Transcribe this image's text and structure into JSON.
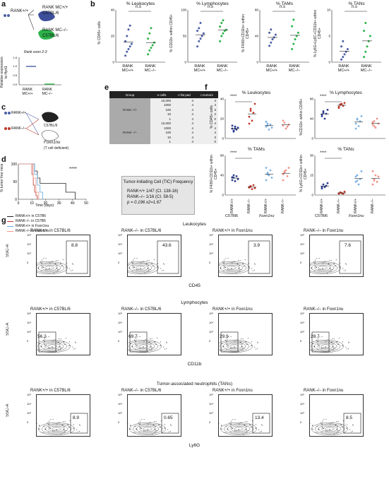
{
  "panels": {
    "a": {
      "label": "a",
      "mouse_left": "RANK+/+",
      "mouse_mc_pp": "RANK MC+/+",
      "mouse_mc_mm": "RANK MC–/–",
      "strain": "C57BL/6",
      "chart_title": "Rank exon 2-3",
      "ylabel": "Relative expression to Hprt1",
      "cats": [
        "RANK MC+/+",
        "RANK MC–/–"
      ]
    },
    "b": {
      "label": "b",
      "titles": [
        "% Leukocytes",
        "% Lymphocytes",
        "% TAMs",
        "% TANs"
      ],
      "ylabels": [
        "% CD45+ cells",
        "% CD11b- within CD45+",
        "% F4/80+CD11b+ within CD45+",
        "% Ly6G+Ly6C+CD11b+ within CD45+"
      ],
      "ns": "n.s",
      "cats": [
        "RANK MC+/+",
        "RANK MC–/–"
      ]
    },
    "c": {
      "label": "c",
      "g1": "RANK+/+",
      "g2": "RANK–/–",
      "host1": "C57BL/6",
      "host2": "Foxn1nu",
      "host2_note": "(T cell deficient)"
    },
    "d": {
      "label": "d",
      "ylabel": "% tumor free mice",
      "xlabel": "Time (days)",
      "sig": "****",
      "legend": [
        "RANK+/+ in C57B6",
        "RANK–/– in C57B6",
        "RANK+/+ in Foxn1nu",
        "RANK–/– in Foxn1nu"
      ]
    },
    "e": {
      "label": "e",
      "headers": [
        "Group",
        "n cells",
        "n fat pad",
        "n tumors"
      ],
      "groups": [
        "RANK +/+",
        "RANK –/–"
      ],
      "rows_pp": [
        [
          "10,000",
          "4",
          "4"
        ],
        [
          "1000",
          "4",
          "4"
        ],
        [
          "100",
          "4",
          "3"
        ],
        [
          "10",
          "4",
          "2"
        ],
        [
          "1",
          "4",
          "0"
        ]
      ],
      "rows_mm": [
        [
          "10,000",
          "4",
          "4"
        ],
        [
          "1000",
          "4",
          "4"
        ],
        [
          "100",
          "4",
          "4"
        ],
        [
          "10",
          "4",
          "3"
        ],
        [
          "1",
          "4",
          "0"
        ]
      ],
      "tic_title": "Tumor-Initiating Cell (TIC) Frequency",
      "tic_line1": "RANK+/+  1/47 (CI. 138-16)",
      "tic_line2": "RANK–/–  1/16 (CI. 58-5)",
      "tic_line3": "p = 0.196          x2=1.67"
    },
    "f": {
      "label": "f",
      "titles": [
        "% Leukocytes",
        "% Lymphocytes",
        "% TAMs",
        "% TANs"
      ],
      "ylabels": [
        "% CD45+ cells",
        "%CD11b- within CD45+",
        "% F4/80+CD11b+ within CD45+",
        "% Ly6G+CD11b+ within CD45+"
      ],
      "sig": "****",
      "cats": [
        "RANK+/+",
        "RANK–/–",
        "RANK+/+",
        "RANK–/–"
      ],
      "strains": [
        "C57Bl6",
        "Foxn1nu"
      ]
    },
    "g": {
      "label": "g",
      "sections": [
        {
          "title": "Leukocytes",
          "xlabel": "CD45",
          "pcts": [
            "8.8",
            "43.6",
            "3.9",
            "7.6"
          ]
        },
        {
          "title": "Lymphocytes",
          "xlabel": "CD11b",
          "pcts": [
            "56.2",
            "69.7",
            "29.9",
            "28.7"
          ]
        },
        {
          "title": "Tumor-associated neutrophils (TANs)",
          "xlabel": "Ly6G",
          "pcts": [
            "8.9",
            "0.65",
            "13.4",
            "8.5"
          ]
        }
      ],
      "col_titles": [
        "RANK+/+ in C57BL/6",
        "RANK–/– in C57BL/6",
        "RANK+/+ in Foxn1nu",
        "RANK–/– in Foxn1nu"
      ],
      "ylabel": "SSC-A"
    }
  },
  "chart_data": [
    {
      "type": "bar",
      "title": "Rank exon 2-3",
      "categories": [
        "RANK MC+/+",
        "RANK MC–/–"
      ],
      "values": [
        1.0,
        0.05
      ],
      "ylabel": "Relative expression to Hprt1",
      "ylim": [
        0,
        1.5
      ]
    },
    {
      "type": "scatter",
      "title": "% Leukocytes",
      "categories": [
        "RANK MC+/+",
        "RANK MC–/–"
      ],
      "ylabel": "% CD45+ cells",
      "ylim": [
        0,
        40
      ],
      "series": [
        {
          "name": "RANK MC+/+",
          "values": [
            5,
            8,
            10,
            12,
            14,
            16,
            20,
            25,
            28
          ]
        },
        {
          "name": "RANK MC–/–",
          "values": [
            6,
            9,
            11,
            13,
            15,
            18,
            22,
            26
          ]
        }
      ]
    },
    {
      "type": "scatter",
      "title": "% Lymphocytes",
      "categories": [
        "RANK MC+/+",
        "RANK MC–/–"
      ],
      "ylabel": "% CD11b- within CD45+",
      "ylim": [
        0,
        100
      ],
      "series": [
        {
          "name": "RANK MC+/+",
          "values": [
            30,
            40,
            45,
            50,
            55,
            60,
            65,
            75
          ]
        },
        {
          "name": "RANK MC–/–",
          "values": [
            40,
            50,
            55,
            60,
            62,
            68,
            75,
            80
          ]
        }
      ]
    },
    {
      "type": "scatter",
      "title": "% TAMs",
      "categories": [
        "RANK MC+/+",
        "RANK MC–/–"
      ],
      "ylabel": "% F4/80+CD11b+ within CD45+",
      "ylim": [
        0,
        80
      ],
      "series": [
        {
          "name": "RANK MC+/+",
          "values": [
            25,
            30,
            35,
            38,
            42,
            45,
            50
          ]
        },
        {
          "name": "RANK MC–/–",
          "values": [
            20,
            28,
            35,
            40,
            45,
            55,
            65
          ]
        }
      ]
    },
    {
      "type": "scatter",
      "title": "% TANs",
      "categories": [
        "RANK MC+/+",
        "RANK MC–/–"
      ],
      "ylabel": "% Ly6G+Ly6C+CD11b+ within CD45+",
      "ylim": [
        0,
        10
      ],
      "series": [
        {
          "name": "RANK MC+/+",
          "values": [
            0.5,
            1,
            1.5,
            2,
            2.5,
            3,
            4
          ]
        },
        {
          "name": "RANK MC–/–",
          "values": [
            1,
            2,
            3,
            4,
            5,
            6,
            7.5
          ]
        }
      ]
    },
    {
      "type": "line",
      "title": "",
      "xlabel": "Time (days)",
      "ylabel": "% tumor free mice",
      "xlim": [
        0,
        50
      ],
      "ylim": [
        0,
        100
      ],
      "x_ticks": [
        0,
        10,
        20,
        30,
        40,
        50
      ],
      "y_ticks": [
        0,
        50,
        100
      ],
      "series": [
        {
          "name": "RANK+/+ in C57B6",
          "x": [
            0,
            10,
            12,
            14,
            16,
            30,
            35,
            42
          ],
          "y": [
            100,
            100,
            80,
            60,
            45,
            45,
            20,
            0
          ]
        },
        {
          "name": "RANK–/– in C57B6",
          "x": [
            0,
            9,
            10,
            11,
            12,
            13,
            14
          ],
          "y": [
            100,
            100,
            70,
            40,
            20,
            10,
            0
          ]
        },
        {
          "name": "RANK+/+ in Foxn1nu",
          "x": [
            0,
            10,
            12,
            14,
            16,
            18
          ],
          "y": [
            100,
            100,
            70,
            40,
            20,
            0
          ]
        },
        {
          "name": "RANK–/– in Foxn1nu",
          "x": [
            0,
            9,
            11,
            13,
            15
          ],
          "y": [
            100,
            100,
            60,
            20,
            0
          ]
        }
      ]
    },
    {
      "type": "scatter",
      "title": "% Leukocytes",
      "ylabel": "% CD45+ cells",
      "ylim": [
        0,
        40
      ],
      "categories": [
        "RANK+/+",
        "RANK–/–",
        "RANK+/+",
        "RANK–/–"
      ]
    },
    {
      "type": "scatter",
      "title": "% Lymphocytes",
      "ylabel": "%CD11b- within CD45+",
      "ylim": [
        0,
        80
      ],
      "categories": [
        "RANK+/+",
        "RANK–/–",
        "RANK+/+",
        "RANK–/–"
      ]
    },
    {
      "type": "scatter",
      "title": "% TAMs",
      "ylabel": "% F4/80+CD11b+ within CD45+",
      "ylim": [
        0,
        80
      ],
      "categories": [
        "RANK+/+",
        "RANK–/–",
        "RANK+/+",
        "RANK–/–"
      ]
    },
    {
      "type": "scatter",
      "title": "% TANs",
      "ylabel": "% Ly6G+CD11b+ within CD45+",
      "ylim": [
        0,
        30
      ],
      "categories": [
        "RANK+/+",
        "RANK–/–",
        "RANK+/+",
        "RANK–/–"
      ]
    }
  ]
}
